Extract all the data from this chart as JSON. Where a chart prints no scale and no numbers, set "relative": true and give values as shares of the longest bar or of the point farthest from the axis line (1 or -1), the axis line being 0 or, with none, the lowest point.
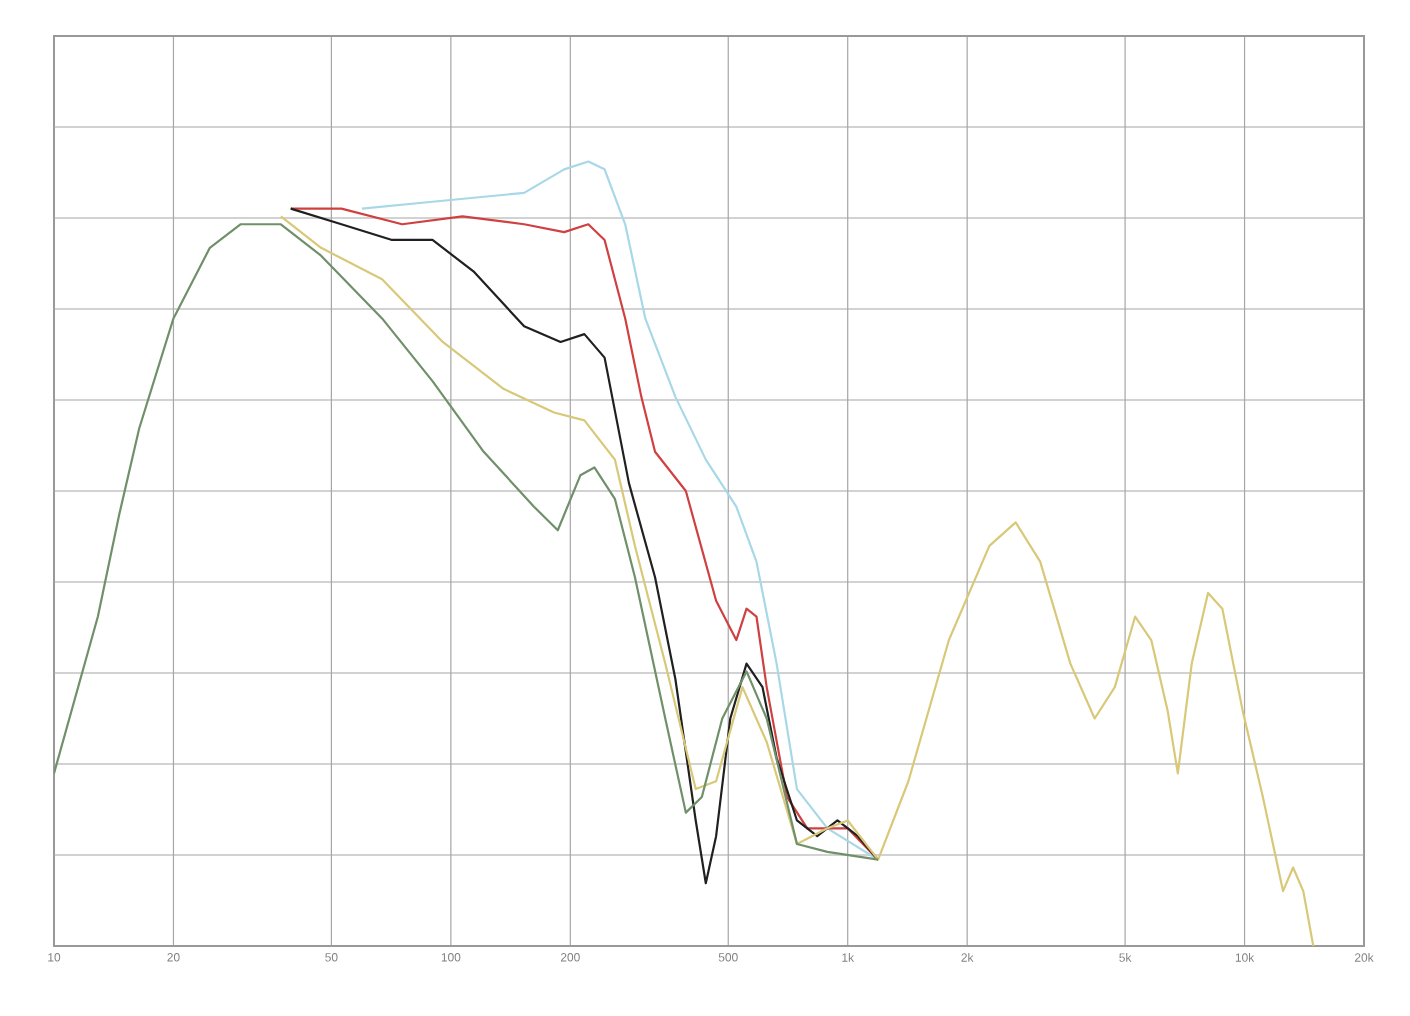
{
  "chart_data": {
    "type": "line",
    "relative": true,
    "log": "x",
    "grid": true,
    "marker": "none",
    "line_style": "solid",
    "xlim": [
      10,
      20000
    ],
    "xticks": [
      {
        "value": 10,
        "label": "10"
      },
      {
        "value": 20,
        "label": "20"
      },
      {
        "value": 50,
        "label": "50"
      },
      {
        "value": 100,
        "label": "100"
      },
      {
        "value": 200,
        "label": "200"
      },
      {
        "value": 500,
        "label": "500"
      },
      {
        "value": 1000,
        "label": "1k"
      },
      {
        "value": 2000,
        "label": "2k"
      },
      {
        "value": 5000,
        "label": "5k"
      },
      {
        "value": 10000,
        "label": "10k"
      },
      {
        "value": 20000,
        "label": "20k"
      }
    ],
    "series": [
      {
        "color": "#a8d8e8",
        "x": [
          59.7,
          95.4,
          153,
          193,
          222,
          244,
          275,
          309,
          368,
          439,
          524,
          589,
          662,
          745,
          889,
          1193
        ],
        "values": [
          0.94,
          0.95,
          0.96,
          0.99,
          1.0,
          0.99,
          0.92,
          0.8,
          0.7,
          0.62,
          0.56,
          0.49,
          0.36,
          0.2,
          0.15,
          0.11
        ]
      },
      {
        "color": "#d04040",
        "x": [
          39.5,
          53,
          75.4,
          107,
          153,
          193,
          222,
          244,
          275,
          302,
          327,
          391,
          466,
          524,
          556,
          589,
          625,
          703,
          791,
          1000,
          1193
        ],
        "values": [
          0.94,
          0.94,
          0.92,
          0.93,
          0.92,
          0.91,
          0.92,
          0.9,
          0.8,
          0.7,
          0.63,
          0.58,
          0.44,
          0.39,
          0.43,
          0.42,
          0.33,
          0.19,
          0.15,
          0.15,
          0.11
        ]
      },
      {
        "color": "#202020",
        "x": [
          39.5,
          53,
          71.1,
          89.9,
          114,
          153,
          189,
          217,
          244,
          281,
          327,
          368,
          414,
          439,
          466,
          506,
          556,
          610,
          662,
          745,
          838,
          942,
          1061,
          1193
        ],
        "values": [
          0.94,
          0.92,
          0.9,
          0.9,
          0.86,
          0.79,
          0.77,
          0.78,
          0.75,
          0.59,
          0.47,
          0.34,
          0.16,
          0.08,
          0.14,
          0.29,
          0.36,
          0.33,
          0.24,
          0.16,
          0.14,
          0.16,
          0.14,
          0.11
        ]
      },
      {
        "color": "#d8c878",
        "x": [
          37.3,
          47.1,
          67.1,
          95.4,
          136,
          182,
          217,
          259,
          291,
          347,
          414,
          466,
          543,
          625,
          745,
          889,
          1000,
          1193,
          1422,
          1799,
          2275,
          2650,
          3055,
          3640,
          4190,
          4710,
          5300,
          5820,
          6400,
          6790,
          7360,
          8090,
          8790,
          9890,
          11120,
          12500,
          13250,
          14060,
          14900
        ],
        "values": [
          0.93,
          0.89,
          0.85,
          0.77,
          0.71,
          0.68,
          0.67,
          0.62,
          0.51,
          0.36,
          0.2,
          0.21,
          0.33,
          0.26,
          0.13,
          0.15,
          0.16,
          0.11,
          0.21,
          0.39,
          0.51,
          0.54,
          0.49,
          0.36,
          0.29,
          0.33,
          0.42,
          0.39,
          0.3,
          0.22,
          0.36,
          0.45,
          0.43,
          0.3,
          0.19,
          0.07,
          0.1,
          0.07,
          0.0
        ]
      },
      {
        "color": "#70906a",
        "x": [
          10,
          12.9,
          14.6,
          16.4,
          20,
          24.7,
          29.5,
          37.3,
          47.1,
          67.1,
          89.9,
          121,
          162,
          186,
          212,
          230,
          259,
          291,
          347,
          391,
          429,
          483,
          556,
          625,
          745,
          889,
          1193
        ],
        "values": [
          0.22,
          0.42,
          0.55,
          0.66,
          0.8,
          0.89,
          0.92,
          0.92,
          0.88,
          0.8,
          0.72,
          0.63,
          0.56,
          0.53,
          0.6,
          0.61,
          0.57,
          0.47,
          0.29,
          0.17,
          0.19,
          0.29,
          0.35,
          0.29,
          0.13,
          0.12,
          0.11
        ]
      }
    ]
  }
}
